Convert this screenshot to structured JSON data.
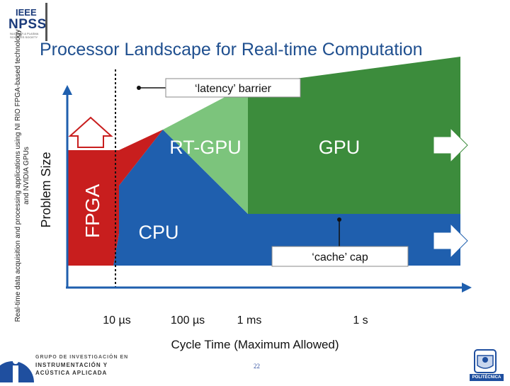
{
  "org_logo": {
    "acronym": "IEEE",
    "name": "NPSS",
    "tagline": "NUCLEAR & PLASMA SCIENCES SOCIETY"
  },
  "side_note": "Real-time data acquisition and processing applications using NI RIO FPGA-based technology and NVIDIA GPUs",
  "slide_title": "Processor Landscape for Real-time Computation",
  "diagram": {
    "regions": {
      "fpga": "FPGA",
      "rt_gpu": "RT-GPU",
      "gpu": "GPU",
      "cpu": "CPU"
    },
    "callouts": {
      "latency_barrier": "‘latency’ barrier",
      "cache_cap": "‘cache’ cap"
    },
    "y_axis_label": "Problem Size",
    "x_axis_label": "Cycle Time (Maximum Allowed)",
    "x_ticks": [
      "10 µs",
      "100 µs",
      "1 ms",
      "1 s"
    ],
    "colors": {
      "fpga": "#c81e1e",
      "cpu": "#1f5fae",
      "rt_gpu": "#7cc47c",
      "gpu": "#3c8c3c",
      "axis": "#1f5fae",
      "title": "#1f4f8f"
    }
  },
  "footer": {
    "group_line1": "GRUPO DE INVESTIGACIÓN EN",
    "group_line2": "INSTRUMENTACIÓN Y",
    "group_line3": "ACÚSTICA APLICADA",
    "group_logo": "ia",
    "page_number": "22",
    "university": "POLITÉCNICA"
  }
}
